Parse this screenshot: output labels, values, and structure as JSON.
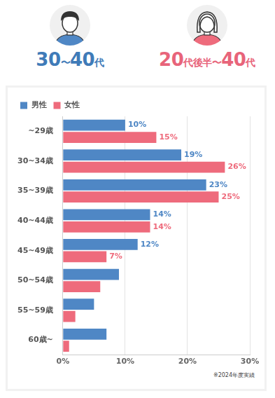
{
  "header": [
    "30〜40代",
    "20代後半〜40代"
  ],
  "chart_data": {
    "type": "bar",
    "orientation": "horizontal",
    "categories": [
      "~29歳",
      "30~34歳",
      "35~39歳",
      "40~44歳",
      "45~49歳",
      "50~54歳",
      "55~59歳",
      "60歳~"
    ],
    "series": [
      {
        "name": "男性",
        "color": "#4f87c5",
        "values": [
          10,
          19,
          23,
          14,
          12,
          9,
          5,
          7
        ],
        "value_labels": [
          "10%",
          "19%",
          "23%",
          "14%",
          "12%",
          null,
          null,
          null
        ]
      },
      {
        "name": "女性",
        "color": "#ee6b7c",
        "values": [
          15,
          26,
          25,
          14,
          7,
          6,
          2,
          1
        ],
        "value_labels": [
          "15%",
          "26%",
          "25%",
          "14%",
          "7%",
          null,
          null,
          null
        ]
      }
    ],
    "xlim": [
      0,
      30
    ],
    "xticks": [
      {
        "value": 0,
        "label": "0%"
      },
      {
        "value": 10,
        "label": "10%"
      },
      {
        "value": 20,
        "label": "20%"
      },
      {
        "value": 30,
        "label": "30%"
      }
    ],
    "grid": true,
    "legend": "top-left",
    "data_labels": true,
    "annotations": [
      "※2024年度実績"
    ]
  }
}
